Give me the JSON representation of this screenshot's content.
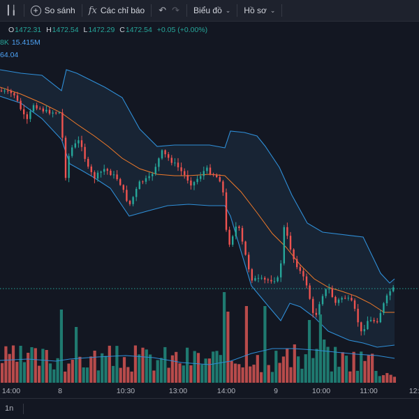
{
  "toolbar": {
    "compare_label": "So sánh",
    "indicators_label": "Các chỉ báo",
    "chart_type_label": "Biểu đồ",
    "profile_label": "Hồ sơ"
  },
  "legend": {
    "ohlc": {
      "o_label": "O",
      "o": "1472.31",
      "h_label": "H",
      "h": "1472.54",
      "l_label": "L",
      "l": "1472.29",
      "c_label": "C",
      "c": "1472.54",
      "change": "+0.05 (+0.00%)"
    },
    "volume_partial": "8K",
    "volume_ma": "15.415M",
    "bb_partial": "64.04"
  },
  "xaxis": {
    "ticks": [
      "14:00",
      "8",
      "10:30",
      "13:00",
      "14:00",
      "9",
      "10:00",
      "11:00",
      "12:0"
    ]
  },
  "bottom": {
    "timeframe": "1n"
  },
  "colors": {
    "background": "#131722",
    "up": "#26a69a",
    "down": "#ef5350",
    "up_volume": "#1f7a70",
    "down_volume": "#b84b4b",
    "bollinger": "#2f8fd8",
    "basis": "#f07a2a",
    "band_fill": "#1b2a3b"
  },
  "icons": [
    "compare-icon",
    "indicators-icon",
    "undo-icon",
    "redo-icon",
    "chevron-down-icon"
  ]
}
